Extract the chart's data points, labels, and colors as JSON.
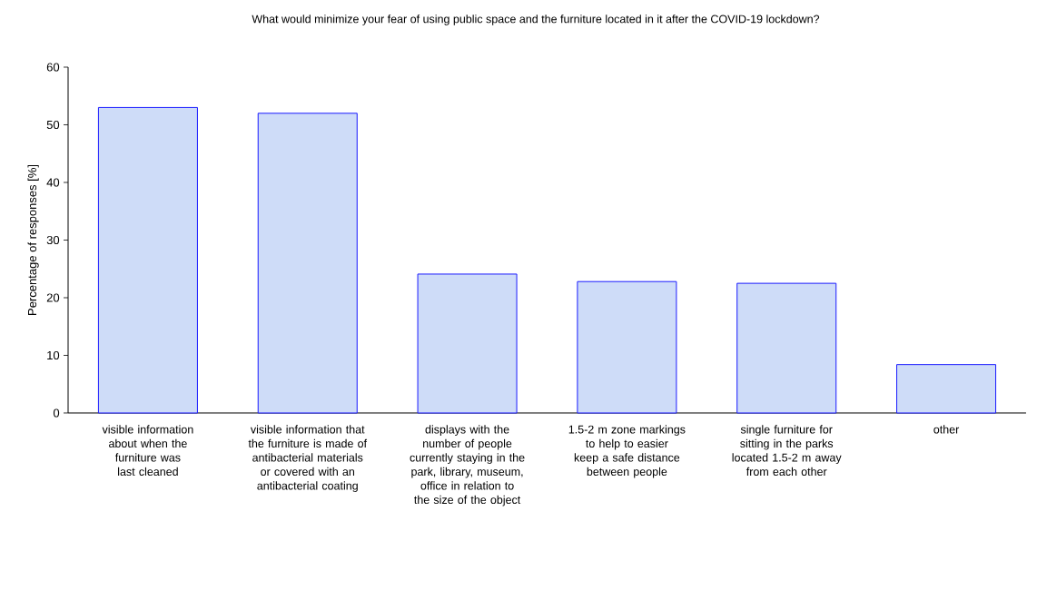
{
  "chart_data": {
    "type": "bar",
    "title": "What would minimize your fear of using public space and the furniture located in it after the COVID-19 lockdown?",
    "ylabel": "Percentage of responses [%]",
    "categories": [
      "visible information about when the furniture was last cleaned",
      "visible information that the furniture is made of antibacterial materials or covered with an antibacterial coating",
      "displays with the number of people currently staying in the park, library, museum, office in relation to the size of the object",
      "1.5-2 m zone markings to help to easier keep a safe distance between people",
      "single furniture for sitting in the parks located 1.5-2 m away from each other",
      "other"
    ],
    "values": [
      53,
      52,
      24.1,
      22.8,
      22.5,
      8.4
    ],
    "color": "#cedcf8",
    "ylim": [
      0,
      60
    ],
    "yticks": [
      0,
      10,
      20,
      30,
      40,
      50,
      60
    ],
    "grid": false
  }
}
